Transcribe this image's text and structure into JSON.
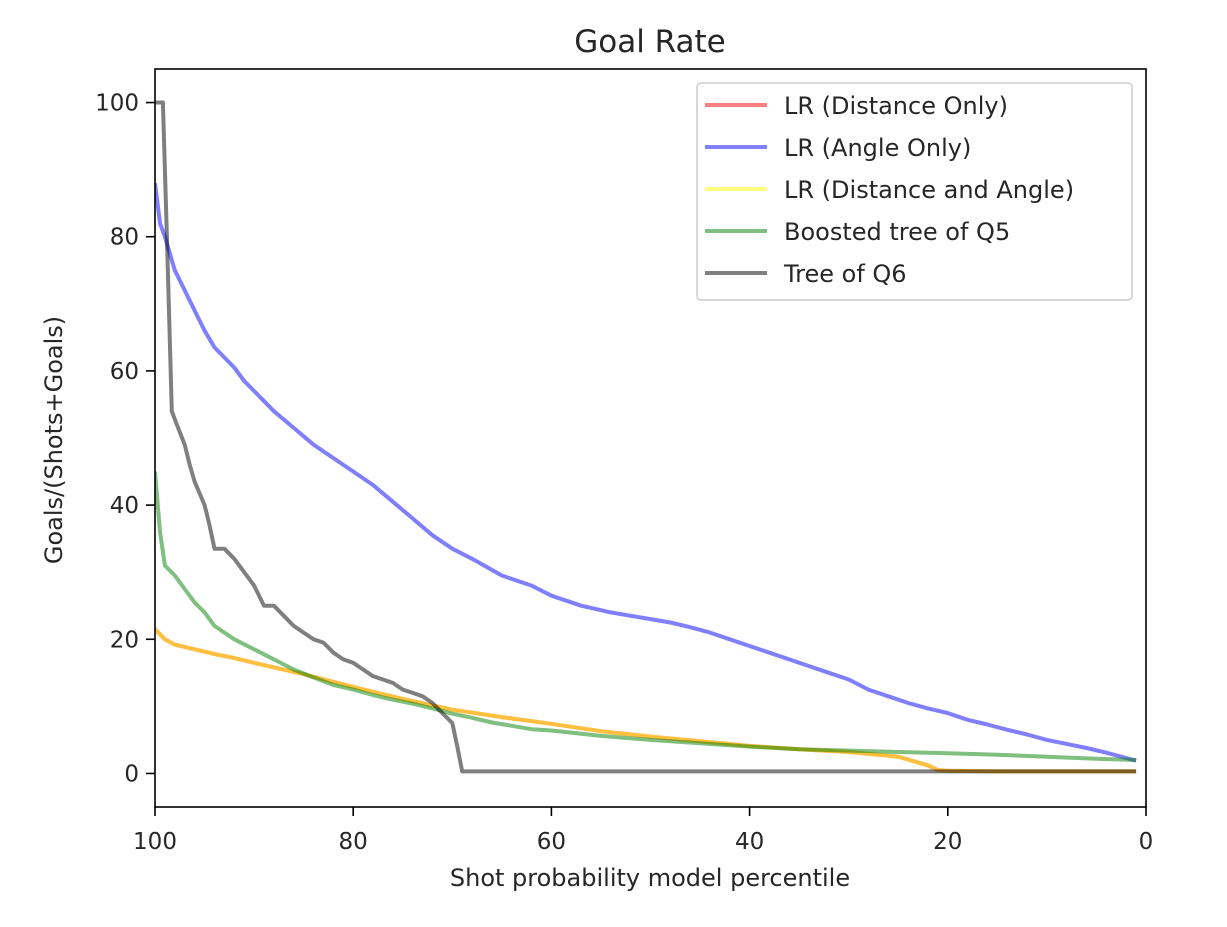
{
  "chart_data": {
    "type": "line",
    "title": "Goal Rate",
    "xlabel": "Shot probability model percentile",
    "ylabel": "Goals/(Shots+Goals)",
    "xlim": [
      100,
      0
    ],
    "ylim": [
      -5,
      105
    ],
    "x_ticks": [
      "100",
      "80",
      "60",
      "40",
      "20",
      "0"
    ],
    "y_ticks": [
      "0",
      "20",
      "40",
      "60",
      "80",
      "100"
    ],
    "grid": false,
    "legend_position": "top-right",
    "series": [
      {
        "name": "LR (Distance Only)",
        "color": "#ff0000",
        "opacity": 0.5,
        "x": [
          100,
          99,
          98,
          96,
          94,
          92,
          90,
          85,
          80,
          75,
          70,
          65,
          60,
          55,
          50,
          45,
          40,
          35,
          30,
          25,
          22,
          21,
          20,
          15,
          10,
          5,
          1
        ],
        "y": [
          21.5,
          20,
          19.2,
          18.5,
          17.8,
          17.2,
          16.5,
          14.8,
          12.9,
          11.1,
          9.5,
          8.4,
          7.4,
          6.3,
          5.5,
          4.8,
          4.1,
          3.6,
          3.2,
          2.5,
          1.2,
          0.5,
          0.4,
          0.3,
          0.3,
          0.3,
          0.3
        ]
      },
      {
        "name": "LR (Angle Only)",
        "color": "#0000ff",
        "opacity": 0.5,
        "x": [
          100,
          99.5,
          99,
          98,
          97,
          96,
          95,
          94,
          93,
          92,
          91,
          90,
          88,
          86,
          84,
          82,
          80,
          78,
          76,
          74,
          72,
          70,
          68,
          65,
          62,
          60,
          57,
          54,
          52,
          50,
          48,
          46,
          44,
          42,
          40,
          38,
          36,
          34,
          32,
          30,
          28,
          26,
          24,
          22,
          20,
          18,
          16,
          14,
          12,
          10,
          8,
          6,
          4,
          2,
          1
        ],
        "y": [
          88,
          82,
          80,
          75,
          72,
          69,
          66,
          63.5,
          62,
          60.5,
          58.5,
          57,
          54,
          51.5,
          49,
          47,
          45,
          43,
          40.5,
          38,
          35.5,
          33.5,
          32,
          29.5,
          28,
          26.5,
          25,
          24,
          23.5,
          23,
          22.5,
          21.8,
          21,
          20,
          19,
          18,
          17,
          16,
          15,
          14,
          12.5,
          11.5,
          10.5,
          9.7,
          9,
          8,
          7.3,
          6.5,
          5.8,
          5,
          4.4,
          3.8,
          3.1,
          2.3,
          1.9
        ]
      },
      {
        "name": "LR (Distance and Angle)",
        "color": "#ffff00",
        "opacity": 0.5,
        "x": [
          100,
          99,
          98,
          96,
          94,
          92,
          90,
          85,
          80,
          75,
          70,
          65,
          60,
          55,
          50,
          45,
          40,
          35,
          30,
          25,
          22,
          21,
          20,
          15,
          10,
          5,
          1
        ],
        "y": [
          21.5,
          20,
          19.2,
          18.5,
          17.8,
          17.2,
          16.5,
          14.8,
          12.9,
          11.1,
          9.5,
          8.4,
          7.4,
          6.3,
          5.5,
          4.8,
          4.1,
          3.6,
          3.2,
          2.5,
          1.2,
          0.5,
          0.4,
          0.3,
          0.3,
          0.3,
          0.3
        ]
      },
      {
        "name": "Boosted tree of Q5",
        "color": "#008000",
        "opacity": 0.5,
        "x": [
          100,
          99.5,
          99,
          98,
          97,
          96,
          95,
          94,
          93,
          92,
          90,
          88,
          86,
          84,
          82,
          80,
          78,
          76,
          74,
          72,
          70,
          68,
          66,
          64,
          62,
          60,
          55,
          50,
          45,
          40,
          35,
          30,
          25,
          20,
          15,
          10,
          5,
          1
        ],
        "y": [
          45,
          36,
          31,
          29.5,
          27.5,
          25.5,
          24,
          22,
          21,
          20,
          18.5,
          17,
          15.5,
          14.3,
          13.2,
          12.5,
          11.7,
          11,
          10.4,
          9.7,
          8.9,
          8.3,
          7.6,
          7.1,
          6.6,
          6.4,
          5.6,
          5,
          4.5,
          4,
          3.6,
          3.4,
          3.2,
          3,
          2.8,
          2.5,
          2.2,
          2
        ]
      },
      {
        "name": "Tree of Q6",
        "color": "#000000",
        "opacity": 0.5,
        "x": [
          100,
          99.2,
          98.8,
          98.3,
          97.8,
          97,
          96.5,
          96,
          95,
          94.5,
          94,
          93,
          92,
          91,
          90,
          89,
          88,
          87,
          86,
          85,
          84,
          83,
          82,
          81,
          80,
          79,
          78,
          77,
          76,
          75,
          74,
          73,
          72,
          71,
          70,
          69.5,
          69,
          68,
          60,
          50,
          40,
          30,
          20,
          10,
          1
        ],
        "y": [
          100,
          100,
          80,
          54,
          52,
          49,
          46,
          43.5,
          40,
          37,
          33.5,
          33.5,
          32,
          30,
          28,
          25,
          25,
          23.5,
          22,
          21,
          20,
          19.5,
          18,
          17,
          16.5,
          15.5,
          14.5,
          14,
          13.5,
          12.5,
          12,
          11.5,
          10.5,
          9,
          7.5,
          4,
          0.3,
          0.3,
          0.3,
          0.3,
          0.3,
          0.3,
          0.3,
          0.3,
          0.3
        ]
      }
    ]
  }
}
